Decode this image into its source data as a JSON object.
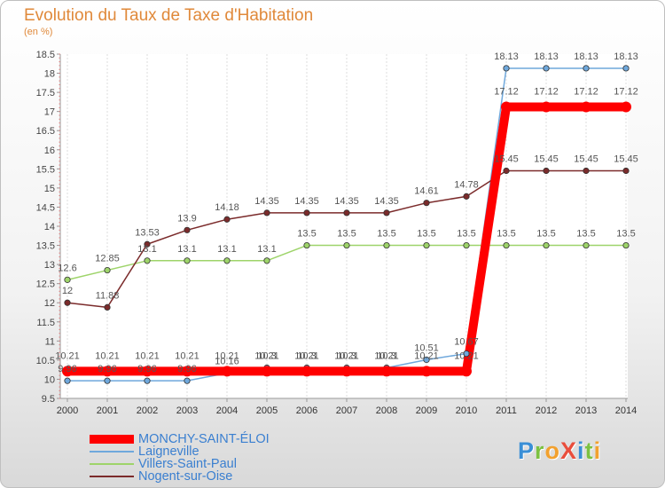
{
  "title": "Evolution du Taux de Taxe d'Habitation",
  "unit": "(en %)",
  "logo": {
    "text": "ProXiti",
    "colors": [
      "#3a8fd6",
      "#7cc142",
      "#f2a12e",
      "#e94e3c",
      "#3a8fd6",
      "#7cc142",
      "#f2a12e"
    ]
  },
  "chart_data": {
    "type": "line",
    "x": [
      "2000",
      "2001",
      "2002",
      "2003",
      "2004",
      "2005",
      "2006",
      "2007",
      "2008",
      "2009",
      "2010",
      "2011",
      "2012",
      "2013",
      "2014"
    ],
    "ylim": [
      9.5,
      18.5
    ],
    "yticks": [
      "9.5",
      "10",
      "10.5",
      "11",
      "11.5",
      "12",
      "12.5",
      "13",
      "13.5",
      "14",
      "14.5",
      "15",
      "15.5",
      "16",
      "16.5",
      "17",
      "17.5",
      "18",
      "18.5"
    ],
    "grid": "vertical",
    "legend": "bottom-left",
    "series": [
      {
        "name": "MONCHY-SAINT-ÉLOI",
        "color": "#ff0000",
        "width": 10,
        "values": [
          10.21,
          10.21,
          10.21,
          10.21,
          10.21,
          10.21,
          10.21,
          10.21,
          10.21,
          10.21,
          10.21,
          17.12,
          17.12,
          17.12,
          17.12
        ],
        "labels": [
          "10.21",
          "10.21",
          "10.21",
          "10.21",
          "10.21",
          "10.21",
          "10.21",
          "10.21",
          "10.21",
          "10.21",
          "10.21",
          "17.12",
          "17.12",
          "17.12",
          "17.12"
        ]
      },
      {
        "name": "Laigneville",
        "color": "#6fa8dc",
        "width": 1.5,
        "values": [
          9.96,
          9.96,
          9.96,
          9.96,
          10.16,
          10.3,
          10.3,
          10.3,
          10.3,
          10.51,
          10.67,
          18.13,
          18.13,
          18.13,
          18.13
        ],
        "labels": [
          "9.96",
          "9.96",
          "9.96",
          "9.96",
          "10.16",
          "10.3",
          "10.3",
          "10.3",
          "10.3",
          "10.51",
          "10.67",
          "18.13",
          "18.13",
          "18.13",
          "18.13"
        ]
      },
      {
        "name": "Villers-Saint-Paul",
        "color": "#9ed46a",
        "width": 1.5,
        "values": [
          12.6,
          12.85,
          13.1,
          13.1,
          13.1,
          13.1,
          13.5,
          13.5,
          13.5,
          13.5,
          13.5,
          13.5,
          13.5,
          13.5,
          13.5
        ],
        "labels": [
          "12.6",
          "12.85",
          "13.1",
          "13.1",
          "13.1",
          "13.1",
          "13.5",
          "13.5",
          "13.5",
          "13.5",
          "13.5",
          "13.5",
          "13.5",
          "13.5",
          "13.5"
        ]
      },
      {
        "name": "Nogent-sur-Oise",
        "color": "#7b2b2b",
        "width": 1.5,
        "values": [
          12,
          11.88,
          13.53,
          13.9,
          14.18,
          14.35,
          14.35,
          14.35,
          14.35,
          14.61,
          14.78,
          15.45,
          15.45,
          15.45,
          15.45
        ],
        "labels": [
          "12",
          "11.88",
          "13.53",
          "13.9",
          "14.18",
          "14.35",
          "14.35",
          "14.35",
          "14.35",
          "14.61",
          "14.78",
          "15.45",
          "15.45",
          "15.45",
          "15.45"
        ]
      }
    ]
  }
}
